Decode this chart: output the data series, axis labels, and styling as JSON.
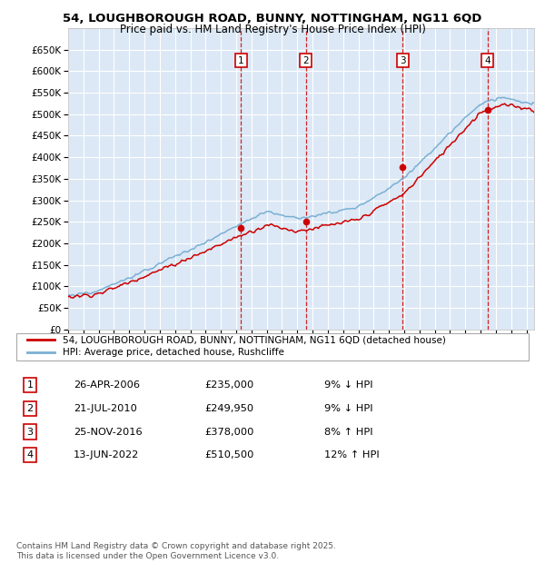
{
  "title_line1": "54, LOUGHBOROUGH ROAD, BUNNY, NOTTINGHAM, NG11 6QD",
  "title_line2": "Price paid vs. HM Land Registry's House Price Index (HPI)",
  "plot_bg_color": "#dce8f5",
  "grid_color": "#ffffff",
  "hpi_line_color": "#7ab0d4",
  "price_line_color": "#cc0000",
  "ylim_min": 0,
  "ylim_max": 700000,
  "yticks": [
    0,
    50000,
    100000,
    150000,
    200000,
    250000,
    300000,
    350000,
    400000,
    450000,
    500000,
    550000,
    600000,
    650000
  ],
  "ytick_labels": [
    "£0",
    "£50K",
    "£100K",
    "£150K",
    "£200K",
    "£250K",
    "£300K",
    "£350K",
    "£400K",
    "£450K",
    "£500K",
    "£550K",
    "£600K",
    "£650K"
  ],
  "xlim_min": 1995.0,
  "xlim_max": 2025.5,
  "sale_dates": [
    2006.32,
    2010.55,
    2016.9,
    2022.45
  ],
  "sale_prices": [
    235000,
    249950,
    378000,
    510500
  ],
  "sale_labels": [
    "1",
    "2",
    "3",
    "4"
  ],
  "vline_color": "#cc0000",
  "legend_property_label": "54, LOUGHBOROUGH ROAD, BUNNY, NOTTINGHAM, NG11 6QD (detached house)",
  "legend_hpi_label": "HPI: Average price, detached house, Rushcliffe",
  "table_rows": [
    [
      "1",
      "26-APR-2006",
      "£235,000",
      "9% ↓ HPI"
    ],
    [
      "2",
      "21-JUL-2010",
      "£249,950",
      "9% ↓ HPI"
    ],
    [
      "3",
      "25-NOV-2016",
      "£378,000",
      "8% ↑ HPI"
    ],
    [
      "4",
      "13-JUN-2022",
      "£510,500",
      "12% ↑ HPI"
    ]
  ],
  "footer_text": "Contains HM Land Registry data © Crown copyright and database right 2025.\nThis data is licensed under the Open Government Licence v3.0.",
  "number_box_color": "#cc0000"
}
